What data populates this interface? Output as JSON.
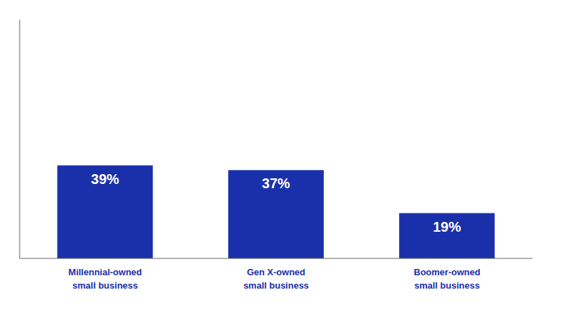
{
  "chart_data": {
    "type": "bar",
    "categories": [
      "Millennial-owned\nsmall business",
      "Gen X-owned\nsmall business",
      "Boomer-owned\nsmall business"
    ],
    "values": [
      39,
      37,
      19
    ],
    "value_labels": [
      "39%",
      "37%",
      "19%"
    ],
    "data_labels": true,
    "color": "#1a30aa",
    "ylim": [
      0,
      100
    ],
    "tick_labels": "x"
  }
}
